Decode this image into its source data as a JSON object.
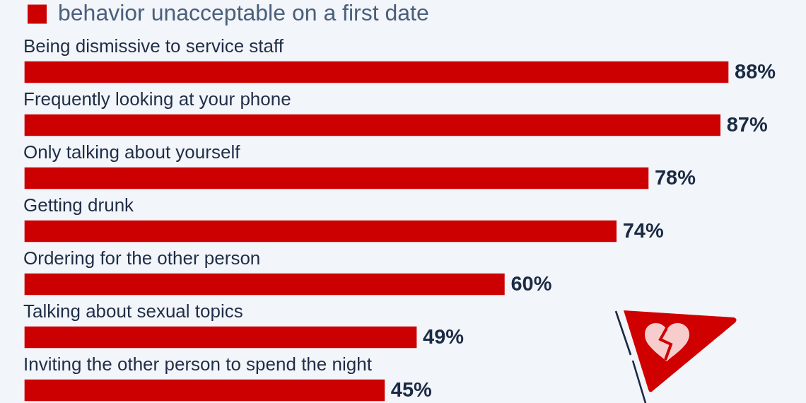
{
  "chart_data": {
    "type": "bar",
    "orientation": "horizontal",
    "legend": "top left",
    "categories": [
      "Being dismissive to service staff",
      "Frequently looking at your phone",
      "Only talking about yourself",
      "Getting drunk",
      "Ordering for the other person",
      "Talking about sexual topics",
      "Inviting the other person to spend the night"
    ],
    "series": [
      {
        "name": "behavior unacceptable on a first date",
        "color": "#cc0000",
        "values": [
          88,
          87,
          78,
          74,
          60,
          49,
          45
        ],
        "value_labels": [
          "88%",
          "87%",
          "78%",
          "74%",
          "60%",
          "49%",
          "45%"
        ]
      }
    ]
  }
}
